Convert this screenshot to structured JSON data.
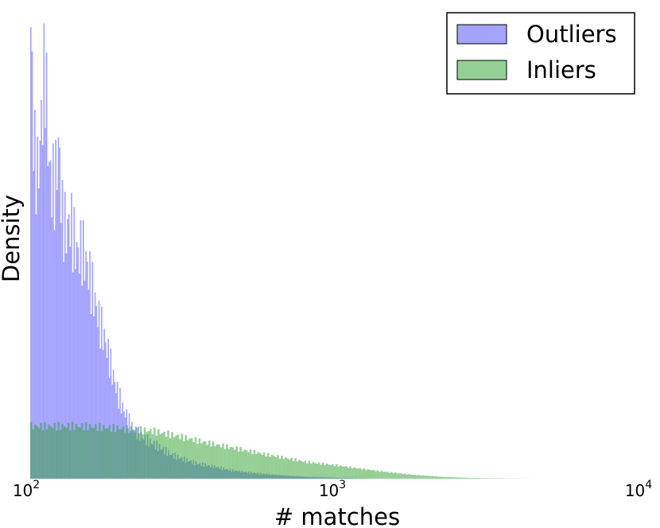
{
  "chart_data": {
    "type": "histogram",
    "xlabel": "# matches",
    "ylabel": "Density",
    "xscale": "log",
    "xlim": [
      100,
      10000
    ],
    "ylim": [
      0,
      1.0
    ],
    "x_ticks": [
      {
        "value": 100,
        "base": "10",
        "exp": "2"
      },
      {
        "value": 1000,
        "base": "10",
        "exp": "3"
      },
      {
        "value": 10000,
        "base": "10",
        "exp": "4"
      }
    ],
    "y_ticks_visible": false,
    "grid": false,
    "legend_position": "top-right",
    "alpha": 0.5,
    "series": [
      {
        "name": "Outliers",
        "color": "#4a4aff",
        "points": [
          [
            100,
            1.0
          ],
          [
            103,
            0.68
          ],
          [
            106,
            0.63
          ],
          [
            109,
            0.76
          ],
          [
            112,
            0.87
          ],
          [
            115,
            0.66
          ],
          [
            118,
            0.61
          ],
          [
            121,
            0.62
          ],
          [
            124,
            0.71
          ],
          [
            127,
            0.55
          ],
          [
            131,
            0.52
          ],
          [
            135,
            0.54
          ],
          [
            139,
            0.5
          ],
          [
            143,
            0.47
          ],
          [
            148,
            0.48
          ],
          [
            153,
            0.45
          ],
          [
            158,
            0.41
          ],
          [
            163,
            0.37
          ],
          [
            168,
            0.33
          ],
          [
            174,
            0.3
          ],
          [
            180,
            0.26
          ],
          [
            186,
            0.22
          ],
          [
            193,
            0.18
          ],
          [
            200,
            0.15
          ],
          [
            210,
            0.12
          ],
          [
            220,
            0.1
          ],
          [
            235,
            0.085
          ],
          [
            250,
            0.075
          ],
          [
            270,
            0.062
          ],
          [
            290,
            0.05
          ],
          [
            320,
            0.04
          ],
          [
            350,
            0.032
          ],
          [
            400,
            0.025
          ],
          [
            450,
            0.018
          ],
          [
            500,
            0.014
          ],
          [
            600,
            0.009
          ],
          [
            700,
            0.006
          ],
          [
            800,
            0.004
          ],
          [
            1000,
            0.002
          ],
          [
            1300,
            0.0
          ]
        ]
      },
      {
        "name": "Inliers",
        "color": "#2ca02c",
        "points": [
          [
            100,
            0.11
          ],
          [
            150,
            0.11
          ],
          [
            200,
            0.105
          ],
          [
            250,
            0.1
          ],
          [
            300,
            0.09
          ],
          [
            350,
            0.08
          ],
          [
            400,
            0.072
          ],
          [
            500,
            0.06
          ],
          [
            600,
            0.05
          ],
          [
            700,
            0.042
          ],
          [
            800,
            0.035
          ],
          [
            1000,
            0.028
          ],
          [
            1200,
            0.021
          ],
          [
            1500,
            0.013
          ],
          [
            1800,
            0.008
          ],
          [
            2200,
            0.004
          ],
          [
            2800,
            0.0015
          ],
          [
            3500,
            0.0005
          ],
          [
            4600,
            0.0
          ]
        ]
      }
    ]
  }
}
